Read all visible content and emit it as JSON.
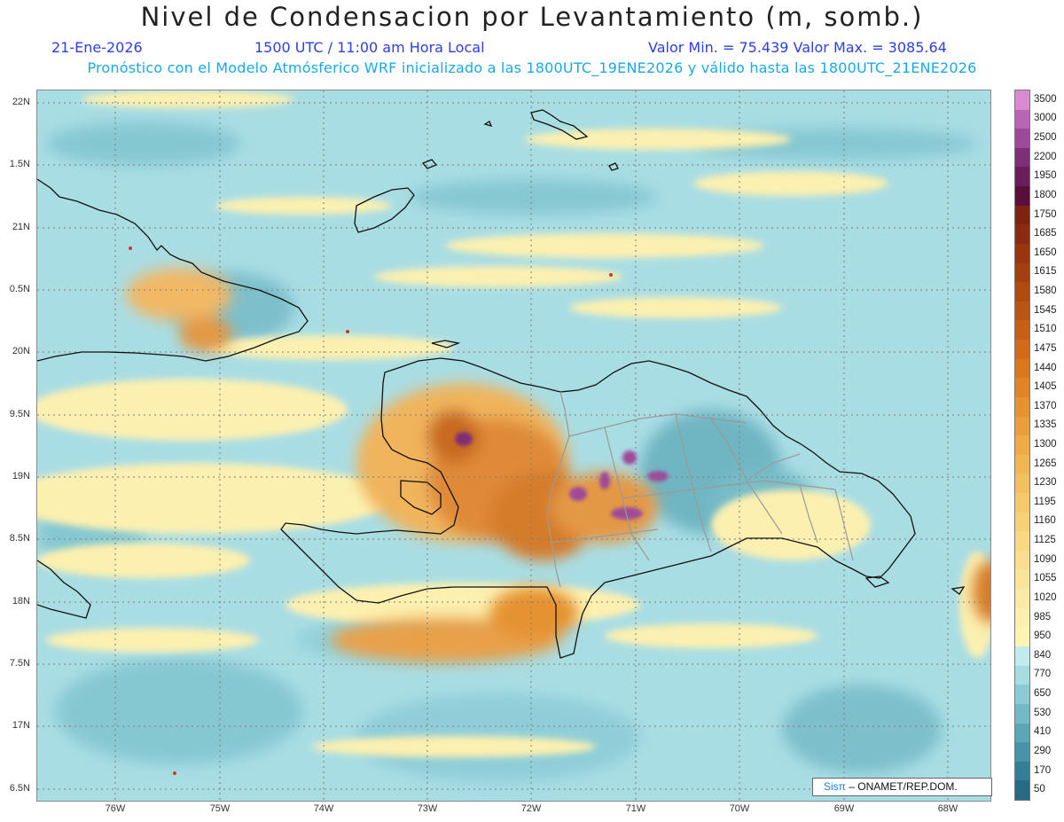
{
  "header": {
    "title": "Nivel de Condensacion por Levantamiento (m, somb.)",
    "date": "21-Ene-2026",
    "time": "1500 UTC / 11:00 am Hora Local",
    "minmax": "Valor Min. = 75.439  Valor Max. = 3085.64",
    "model_line": "Pronóstico con el Modelo Atmósferico WRF inicializado a las 1800UTC_19ENE2026 y válido hasta las  1800UTC_21ENE2026"
  },
  "axes": {
    "lat_labels": [
      "22N",
      "1.5N",
      "21N",
      "0.5N",
      "20N",
      "9.5N",
      "19N",
      "8.5N",
      "18N",
      "7.5N",
      "17N",
      "6.5N"
    ],
    "lon_labels": [
      "76W",
      "75W",
      "74W",
      "73W",
      "72W",
      "71W",
      "70W",
      "69W",
      "68W"
    ]
  },
  "legend": {
    "labels": [
      "3500",
      "3000",
      "2500",
      "2200",
      "1950",
      "1800",
      "1750",
      "1685",
      "1650",
      "1615",
      "1580",
      "1545",
      "1510",
      "1475",
      "1440",
      "1405",
      "1370",
      "1335",
      "1300",
      "1265",
      "1230",
      "1195",
      "1160",
      "1125",
      "1090",
      "1055",
      "1020",
      "985",
      "950",
      "840",
      "770",
      "650",
      "530",
      "410",
      "290",
      "170",
      "50"
    ],
    "colors": [
      "#d98ad1",
      "#b865b5",
      "#9e4a9a",
      "#7f2f78",
      "#6b1e5c",
      "#5a0f3a",
      "#7d2410",
      "#8a2c10",
      "#97360f",
      "#a3400f",
      "#af4a10",
      "#bb5513",
      "#c56016",
      "#cf6b1b",
      "#d87820",
      "#df8528",
      "#e59331",
      "#e99f3d",
      "#eeab48",
      "#f0b654",
      "#f3c060",
      "#f5c96c",
      "#f7d178",
      "#f8d884",
      "#f9de8f",
      "#fae49a",
      "#fbeaa5",
      "#fcefb0",
      "#fdf3b3",
      "#bfecee",
      "#a6dde3",
      "#8ccbd4",
      "#73b9c6",
      "#5ba6b7",
      "#4794a8",
      "#357f96",
      "#276b83"
    ]
  },
  "credit": {
    "logo": "Sisπ",
    "text": "ONAMET/REP.DOM."
  }
}
